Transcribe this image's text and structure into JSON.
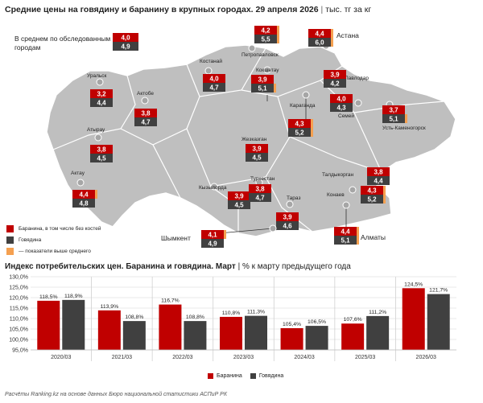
{
  "map": {
    "title": "Средние цены на говядину и баранину в крупных городах. 29 апреля 2026",
    "unit": "тыс. тг за кг",
    "average": {
      "label": "В среднем по обследованным городам",
      "lamb": "4,0",
      "beef": "4,9"
    },
    "legend": {
      "lamb": "Баранина, в том числе без костей",
      "beef": "Говядина",
      "above": "— показатели выше среднего"
    },
    "colors": {
      "lamb": "#c00000",
      "beef": "#404040",
      "above": "#f5a050",
      "land": "#bfbfbf",
      "border": "#ffffff",
      "dot": "#a6a6a6"
    },
    "cities": [
      {
        "id": "petropavlovsk",
        "name": "Петропавловск",
        "lamb": "4,2",
        "beef": "5,5",
        "lamb_above": true,
        "beef_above": true
      },
      {
        "id": "astana",
        "name": "Астана",
        "lamb": "4,4",
        "beef": "6,0",
        "lamb_above": true,
        "beef_above": true
      },
      {
        "id": "kostanay",
        "name": "Костанай",
        "lamb": "4,0",
        "beef": "4,7",
        "lamb_above": false,
        "beef_above": false
      },
      {
        "id": "kokshetau",
        "name": "Кокшетау",
        "lamb": "3,9",
        "beef": "5,1",
        "lamb_above": false,
        "beef_above": true
      },
      {
        "id": "uralsk",
        "name": "Уральск",
        "lamb": "3,2",
        "beef": "4,4",
        "lamb_above": false,
        "beef_above": false
      },
      {
        "id": "aktobe",
        "name": "Актобе",
        "lamb": "3,8",
        "beef": "4,7",
        "lamb_above": false,
        "beef_above": false
      },
      {
        "id": "pavlodar",
        "name": "Павлодар",
        "lamb": "3,9",
        "beef": "4,2",
        "lamb_above": false,
        "beef_above": false
      },
      {
        "id": "karaganda",
        "name": "Караганда",
        "lamb": "4,3",
        "beef": "5,2",
        "lamb_above": true,
        "beef_above": true
      },
      {
        "id": "semey",
        "name": "Семей",
        "lamb": "4,0",
        "beef": "4,3",
        "lamb_above": false,
        "beef_above": false
      },
      {
        "id": "ust",
        "name": "Усть-Каменогорск",
        "lamb": "3,7",
        "beef": "5,1",
        "lamb_above": false,
        "beef_above": true
      },
      {
        "id": "atyrau",
        "name": "Атырау",
        "lamb": "3,8",
        "beef": "4,5",
        "lamb_above": false,
        "beef_above": false
      },
      {
        "id": "zhezkazgan",
        "name": "Жезказган",
        "lamb": "3,9",
        "beef": "4,5",
        "lamb_above": false,
        "beef_above": false
      },
      {
        "id": "taldykorgan",
        "name": "Талдыкорган",
        "lamb": "3,8",
        "beef": "4,4",
        "lamb_above": false,
        "beef_above": false
      },
      {
        "id": "aktau",
        "name": "Актау",
        "lamb": "4,4",
        "beef": "4,8",
        "lamb_above": true,
        "beef_above": false
      },
      {
        "id": "kyzylorda",
        "name": "Кызылорда",
        "lamb": "3,9",
        "beef": "4,5",
        "lamb_above": false,
        "beef_above": false
      },
      {
        "id": "turkestan",
        "name": "Туркестан",
        "lamb": "3,8",
        "beef": "4,7",
        "lamb_above": false,
        "beef_above": false
      },
      {
        "id": "konaev",
        "name": "Конаев",
        "lamb": "4,3",
        "beef": "5,2",
        "lamb_above": true,
        "beef_above": true
      },
      {
        "id": "taraz",
        "name": "Тараз",
        "lamb": "3,9",
        "beef": "4,6",
        "lamb_above": false,
        "beef_above": false
      },
      {
        "id": "shymkent",
        "name": "Шымкент",
        "lamb": "4,1",
        "beef": "4,9",
        "lamb_above": true,
        "beef_above": false
      },
      {
        "id": "almaty",
        "name": "Алматы",
        "lamb": "4,4",
        "beef": "5,1",
        "lamb_above": true,
        "beef_above": true
      }
    ]
  },
  "chart_data": {
    "type": "bar",
    "title": "Индекс потребительских цен. Баранина и говядина. Март",
    "subtitle": "% к марту предыдущего года",
    "categories": [
      "2020/03",
      "2021/03",
      "2022/03",
      "2023/03",
      "2024/03",
      "2025/03",
      "2026/03"
    ],
    "series": [
      {
        "name": "Баранина",
        "color": "#c00000",
        "values": [
          118.5,
          113.9,
          116.7,
          110.8,
          105.4,
          107.6,
          124.5
        ],
        "labels": [
          "118,5%",
          "113,9%",
          "116,7%",
          "110,8%",
          "105,4%",
          "107,6%",
          "124,5%"
        ]
      },
      {
        "name": "Говядина",
        "color": "#404040",
        "values": [
          118.9,
          108.8,
          108.8,
          111.3,
          106.5,
          111.2,
          121.7
        ],
        "labels": [
          "118,9%",
          "108,8%",
          "108,8%",
          "111,3%",
          "106,5%",
          "111,2%",
          "121,7%"
        ]
      }
    ],
    "ylim": [
      95,
      130
    ],
    "yticks": [
      95,
      100,
      105,
      110,
      115,
      120,
      125,
      130
    ],
    "ytick_labels": [
      "95,0%",
      "100,0%",
      "105,0%",
      "110,0%",
      "115,0%",
      "120,0%",
      "125,0%",
      "130,0%"
    ],
    "grid": true,
    "legend": "bottom"
  },
  "source": "Расчёты Ranking.kz на основе данных Бюро национальной статистики АСПиР РК"
}
